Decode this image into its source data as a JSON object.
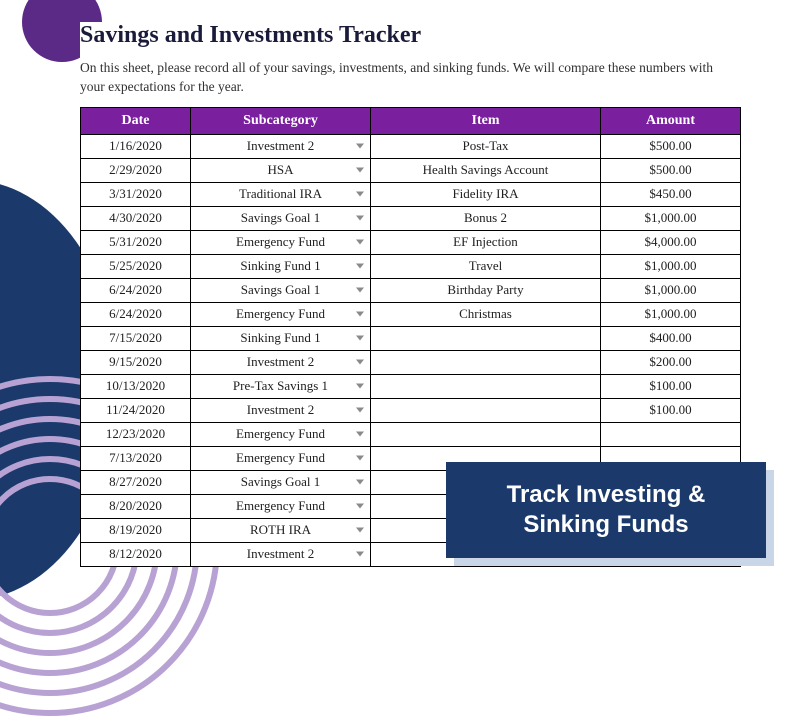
{
  "title": "Savings and Investments Tracker",
  "subtitle": "On this sheet, please record all of your savings, investments, and sinking funds. We will compare these numbers with your expectations for the year.",
  "columns": [
    "Date",
    "Subcategory",
    "Item",
    "Amount"
  ],
  "rows": [
    {
      "date": "1/16/2020",
      "sub": "Investment 2",
      "item": "Post-Tax",
      "amt": "$500.00"
    },
    {
      "date": "2/29/2020",
      "sub": "HSA",
      "item": "Health Savings Account",
      "amt": "$500.00"
    },
    {
      "date": "3/31/2020",
      "sub": "Traditional IRA",
      "item": "Fidelity IRA",
      "amt": "$450.00"
    },
    {
      "date": "4/30/2020",
      "sub": "Savings Goal 1",
      "item": "Bonus 2",
      "amt": "$1,000.00"
    },
    {
      "date": "5/31/2020",
      "sub": "Emergency Fund",
      "item": "EF Injection",
      "amt": "$4,000.00"
    },
    {
      "date": "5/25/2020",
      "sub": "Sinking Fund 1",
      "item": "Travel",
      "amt": "$1,000.00"
    },
    {
      "date": "6/24/2020",
      "sub": "Savings Goal 1",
      "item": "Birthday Party",
      "amt": "$1,000.00"
    },
    {
      "date": "6/24/2020",
      "sub": "Emergency Fund",
      "item": "Christmas",
      "amt": "$1,000.00"
    },
    {
      "date": "7/15/2020",
      "sub": "Sinking Fund 1",
      "item": "",
      "amt": "$400.00"
    },
    {
      "date": "9/15/2020",
      "sub": "Investment 2",
      "item": "",
      "amt": "$200.00"
    },
    {
      "date": "10/13/2020",
      "sub": "Pre-Tax Savings 1",
      "item": "",
      "amt": "$100.00"
    },
    {
      "date": "11/24/2020",
      "sub": "Investment 2",
      "item": "",
      "amt": "$100.00"
    },
    {
      "date": "12/23/2020",
      "sub": "Emergency Fund",
      "item": "",
      "amt": ""
    },
    {
      "date": "7/13/2020",
      "sub": "Emergency Fund",
      "item": "",
      "amt": ""
    },
    {
      "date": "8/27/2020",
      "sub": "Savings Goal 1",
      "item": "",
      "amt": ""
    },
    {
      "date": "8/20/2020",
      "sub": "Emergency Fund",
      "item": "",
      "amt": ""
    },
    {
      "date": "8/19/2020",
      "sub": "ROTH IRA",
      "item": "",
      "amt": ""
    },
    {
      "date": "8/12/2020",
      "sub": "Investment 2",
      "item": "",
      "amt": ""
    }
  ],
  "overlay_line1": "Track Investing &",
  "overlay_line2": "Sinking Funds",
  "colors": {
    "header_bg": "#7a1f9e",
    "accent_purple": "#5b2a86",
    "ring": "#b8a2d4",
    "navy": "#1b3a6b",
    "shadow": "#c9d6e8"
  }
}
